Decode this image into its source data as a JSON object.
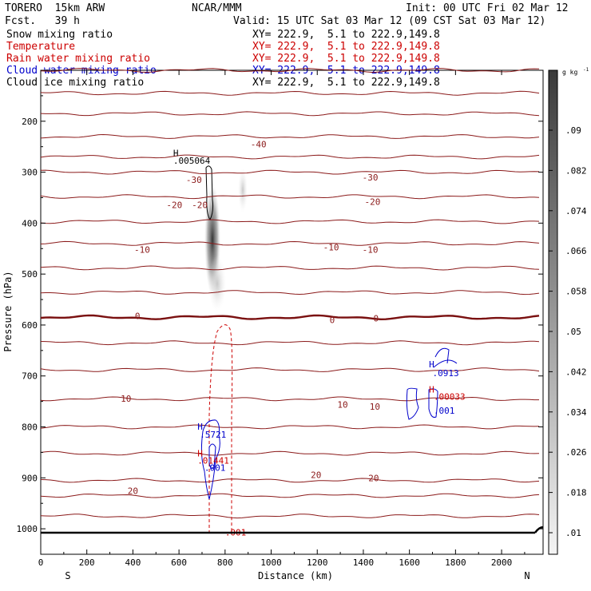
{
  "header": {
    "model": "TORERO  15km ARW",
    "center": "NCAR/MMM",
    "init": "Init: 00 UTC Fri 02 Mar 12",
    "fcst": "Fcst.   39 h",
    "valid": "Valid: 15 UTC Sat 03 Mar 12 (09 CST Sat 03 Mar 12)"
  },
  "legend": [
    {
      "name": "Snow mixing ratio",
      "xy": "XY= 222.9,  5.1 to 222.9,149.8",
      "color": "#000000"
    },
    {
      "name": "Temperature",
      "xy": "XY= 222.9,  5.1 to 222.9,149.8",
      "color": "#cc0000"
    },
    {
      "name": "Rain water mixing ratio",
      "xy": "XY= 222.9,  5.1 to 222.9,149.8",
      "color": "#cc0000"
    },
    {
      "name": "Cloud water mixing ratio",
      "xy": "XY= 222.9,  5.1 to 222.9,149.8",
      "color": "#0000cc"
    },
    {
      "name": "Cloud ice mixing ratio",
      "xy": "XY= 222.9,  5.1 to 222.9,149.8",
      "color": "#000000"
    }
  ],
  "chart_data": {
    "type": "cross-section",
    "xlabel": "Distance (km)",
    "ylabel": "Pressure (hPa)",
    "x_ticks": [
      0,
      200,
      400,
      600,
      800,
      1000,
      1200,
      1400,
      1600,
      1800,
      2000
    ],
    "y_ticks": [
      200,
      300,
      400,
      500,
      600,
      700,
      800,
      900,
      1000
    ],
    "xlim": [
      0,
      2180
    ],
    "ylim": [
      1050,
      100
    ],
    "left_end": "S",
    "right_end": "N",
    "colorbar": {
      "unit": "g kg",
      "unit_exp": "-1",
      "ticks": [
        ".01",
        ".018",
        ".026",
        ".034",
        ".042",
        ".05",
        ".058",
        ".066",
        ".074",
        ".082",
        ".09"
      ]
    },
    "temperature_contours": [
      {
        "p": 100,
        "label": ""
      },
      {
        "p": 145,
        "label": ""
      },
      {
        "p": 185,
        "label": ""
      },
      {
        "p": 230,
        "label": "-40"
      },
      {
        "p": 270,
        "label": ""
      },
      {
        "p": 300,
        "label": "-30"
      },
      {
        "p": 348,
        "label": "-20"
      },
      {
        "p": 397,
        "label": ""
      },
      {
        "p": 440,
        "label": "-10"
      },
      {
        "p": 488,
        "label": ""
      },
      {
        "p": 536,
        "label": ""
      },
      {
        "p": 585,
        "label": "0"
      },
      {
        "p": 635,
        "label": ""
      },
      {
        "p": 688,
        "label": ""
      },
      {
        "p": 745,
        "label": "10"
      },
      {
        "p": 800,
        "label": ""
      },
      {
        "p": 852,
        "label": ""
      },
      {
        "p": 905,
        "label": ""
      },
      {
        "p": 935,
        "label": "20"
      },
      {
        "p": 975,
        "label": ""
      }
    ],
    "annotations": [
      {
        "text": "H",
        "x": 575,
        "p": 262,
        "color": "#000000"
      },
      {
        "text": ".005064",
        "x": 575,
        "p": 277,
        "color": "#000000"
      },
      {
        "text": "H",
        "x": 1685,
        "p": 677,
        "color": "#0000cc"
      },
      {
        "text": ".0913",
        "x": 1700,
        "p": 694,
        "color": "#0000cc"
      },
      {
        "text": "H",
        "x": 1685,
        "p": 726,
        "color": "#cc0000"
      },
      {
        "text": ".00033",
        "x": 1705,
        "p": 740,
        "color": "#cc0000"
      },
      {
        "text": ".001",
        "x": 1705,
        "p": 768,
        "color": "#0000cc"
      },
      {
        "text": "H",
        "x": 680,
        "p": 799,
        "color": "#0000cc"
      },
      {
        "text": ".5721",
        "x": 690,
        "p": 815,
        "color": "#0000cc"
      },
      {
        "text": "H",
        "x": 680,
        "p": 852,
        "color": "#cc0000"
      },
      {
        "text": ".01441",
        "x": 680,
        "p": 866,
        "color": "#cc0000"
      },
      {
        "text": ".001",
        "x": 710,
        "p": 880,
        "color": "#0000cc"
      },
      {
        "text": ".001",
        "x": 800,
        "p": 1007,
        "color": "#cc0000"
      }
    ],
    "contour_labels": [
      {
        "text": "-40",
        "x": 945,
        "p": 245,
        "color": "#8b1a1a"
      },
      {
        "text": "-30",
        "x": 1430,
        "p": 310,
        "color": "#8b1a1a"
      },
      {
        "text": "-30",
        "x": 665,
        "p": 315,
        "color": "#8b1a1a"
      },
      {
        "text": "-20",
        "x": 580,
        "p": 364,
        "color": "#8b1a1a"
      },
      {
        "text": "-20",
        "x": 690,
        "p": 364,
        "color": "#8b1a1a"
      },
      {
        "text": "-20",
        "x": 1440,
        "p": 358,
        "color": "#8b1a1a"
      },
      {
        "text": "-10",
        "x": 1260,
        "p": 447,
        "color": "#8b1a1a"
      },
      {
        "text": "-10",
        "x": 1430,
        "p": 452,
        "color": "#8b1a1a"
      },
      {
        "text": "-10",
        "x": 440,
        "p": 452,
        "color": "#8b1a1a"
      },
      {
        "text": "0",
        "x": 420,
        "p": 582,
        "color": "#8b1a1a"
      },
      {
        "text": "0",
        "x": 1265,
        "p": 590,
        "color": "#8b1a1a"
      },
      {
        "text": "0",
        "x": 1455,
        "p": 587,
        "color": "#8b1a1a"
      },
      {
        "text": "10",
        "x": 370,
        "p": 744,
        "color": "#8b1a1a"
      },
      {
        "text": "10",
        "x": 1310,
        "p": 756,
        "color": "#8b1a1a"
      },
      {
        "text": "10",
        "x": 1450,
        "p": 760,
        "color": "#8b1a1a"
      },
      {
        "text": "20",
        "x": 400,
        "p": 925,
        "color": "#8b1a1a"
      },
      {
        "text": "20",
        "x": 1195,
        "p": 894,
        "color": "#8b1a1a"
      },
      {
        "text": "20",
        "x": 1445,
        "p": 900,
        "color": "#8b1a1a"
      }
    ]
  }
}
